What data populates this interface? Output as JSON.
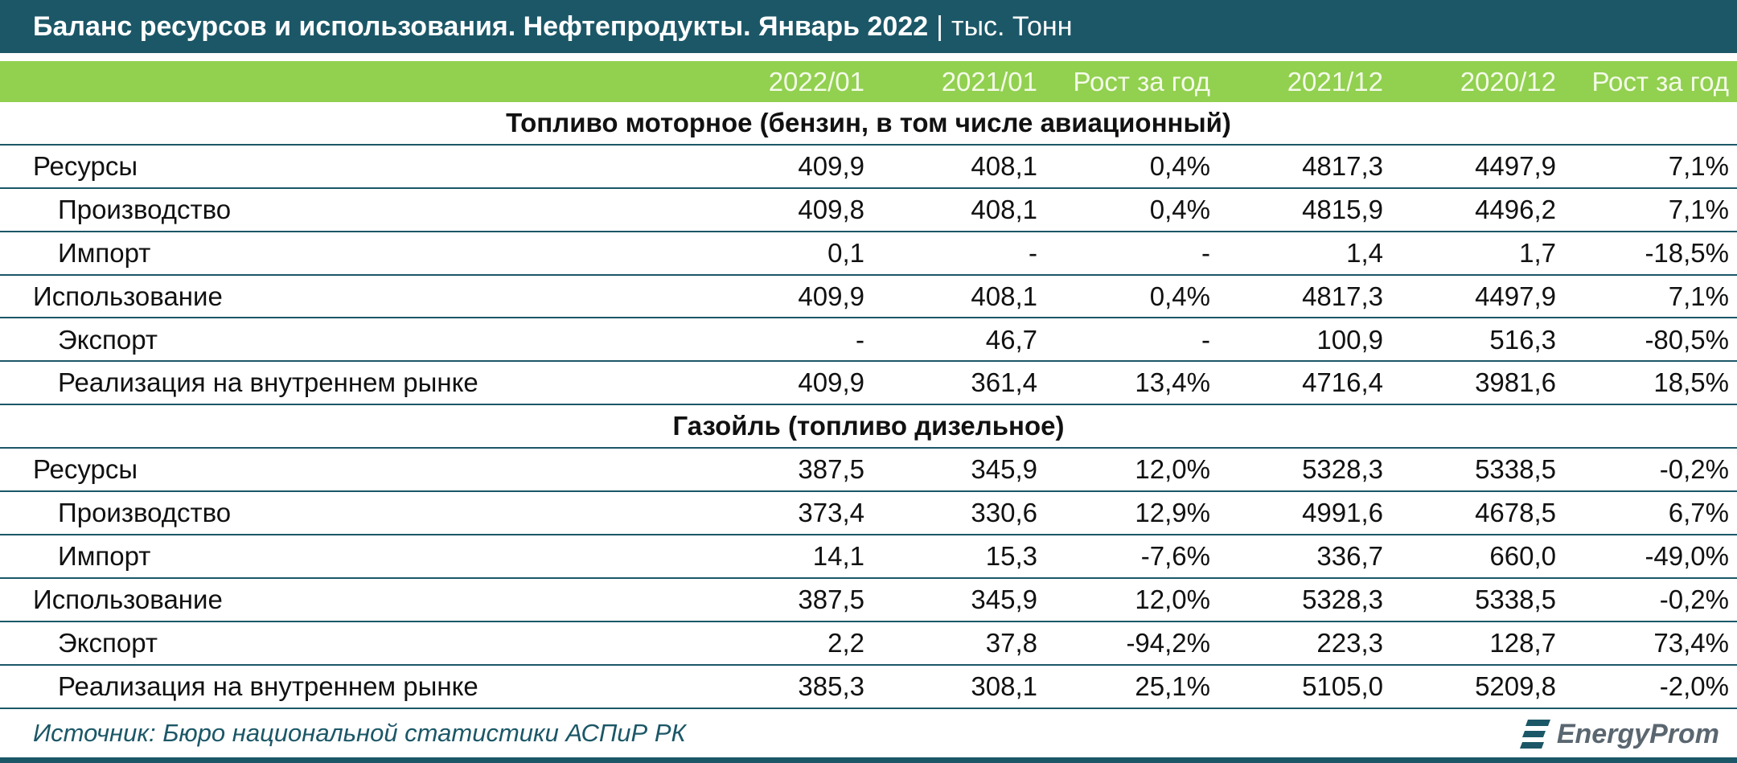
{
  "header": {
    "title": "Баланс ресурсов и использования. Нефтепродукты. Январь 2022",
    "unit": "тыс. Тонн"
  },
  "table": {
    "columns": [
      "2022/01",
      "2021/01",
      "Рост за год",
      "2021/12",
      "2020/12",
      "Рост за год"
    ],
    "sections": [
      {
        "title": "Топливо моторное (бензин, в том числе авиационный)",
        "groups": [
          {
            "label": "Ресурсы",
            "values": [
              "409,9",
              "408,1",
              "0,4%",
              "4817,3",
              "4497,9",
              "7,1%"
            ],
            "children": [
              {
                "label": "Производство",
                "values": [
                  "409,8",
                  "408,1",
                  "0,4%",
                  "4815,9",
                  "4496,2",
                  "7,1%"
                ]
              },
              {
                "label": "Импорт",
                "values": [
                  "0,1",
                  "-",
                  "-",
                  "1,4",
                  "1,7",
                  "-18,5%"
                ]
              }
            ]
          },
          {
            "label": "Использование",
            "values": [
              "409,9",
              "408,1",
              "0,4%",
              "4817,3",
              "4497,9",
              "7,1%"
            ],
            "children": [
              {
                "label": "Экспорт",
                "values": [
                  "-",
                  "46,7",
                  "-",
                  "100,9",
                  "516,3",
                  "-80,5%"
                ]
              },
              {
                "label": "Реализация на внутреннем рынке",
                "values": [
                  "409,9",
                  "361,4",
                  "13,4%",
                  "4716,4",
                  "3981,6",
                  "18,5%"
                ]
              }
            ]
          }
        ]
      },
      {
        "title": "Газойль (топливо дизельное)",
        "groups": [
          {
            "label": "Ресурсы",
            "values": [
              "387,5",
              "345,9",
              "12,0%",
              "5328,3",
              "5338,5",
              "-0,2%"
            ],
            "children": [
              {
                "label": "Производство",
                "values": [
                  "373,4",
                  "330,6",
                  "12,9%",
                  "4991,6",
                  "4678,5",
                  "6,7%"
                ]
              },
              {
                "label": "Импорт",
                "values": [
                  "14,1",
                  "15,3",
                  "-7,6%",
                  "336,7",
                  "660,0",
                  "-49,0%"
                ]
              }
            ]
          },
          {
            "label": "Использование",
            "values": [
              "387,5",
              "345,9",
              "12,0%",
              "5328,3",
              "5338,5",
              "-0,2%"
            ],
            "children": [
              {
                "label": "Экспорт",
                "values": [
                  "2,2",
                  "37,8",
                  "-94,2%",
                  "223,3",
                  "128,7",
                  "73,4%"
                ]
              },
              {
                "label": "Реализация на внутреннем рынке",
                "values": [
                  "385,3",
                  "308,1",
                  "25,1%",
                  "5105,0",
                  "5209,8",
                  "-2,0%"
                ]
              }
            ]
          }
        ]
      }
    ]
  },
  "footer": {
    "source": "Источник: Бюро национальной статистики АСПиР РК",
    "logo": "EnergyProm"
  }
}
